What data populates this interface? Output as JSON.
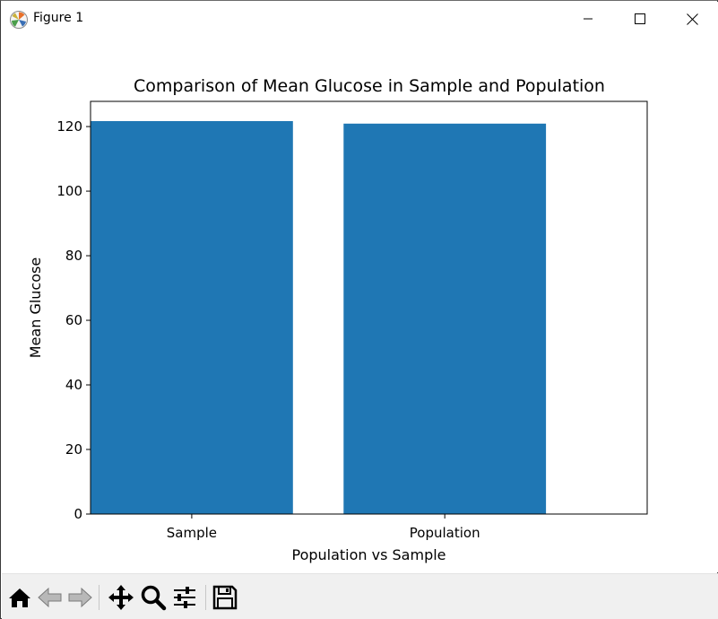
{
  "window": {
    "title": "Figure 1",
    "app_icon": "matplotlib-logo-icon",
    "controls": [
      "minimize-icon",
      "maximize-icon",
      "close-icon"
    ]
  },
  "toolbar": {
    "tools": [
      {
        "name": "home-icon"
      },
      {
        "name": "back-arrow-icon"
      },
      {
        "name": "forward-arrow-icon"
      },
      {
        "name": "pan-move-icon"
      },
      {
        "name": "zoom-magnifier-icon"
      },
      {
        "name": "configure-subplots-icon"
      },
      {
        "name": "save-disk-icon"
      }
    ]
  },
  "chart_data": {
    "type": "bar",
    "title": "Comparison of Mean Glucose in Sample and Population",
    "xlabel": "Population vs Sample",
    "ylabel": "Mean Glucose",
    "categories": [
      "Sample",
      "Population"
    ],
    "values": [
      121.7,
      120.9
    ],
    "ylim": [
      0,
      127.8
    ],
    "yticks": [
      0,
      20,
      40,
      60,
      80,
      100,
      120
    ],
    "bar_color": "#1f77b4",
    "grid": false
  }
}
